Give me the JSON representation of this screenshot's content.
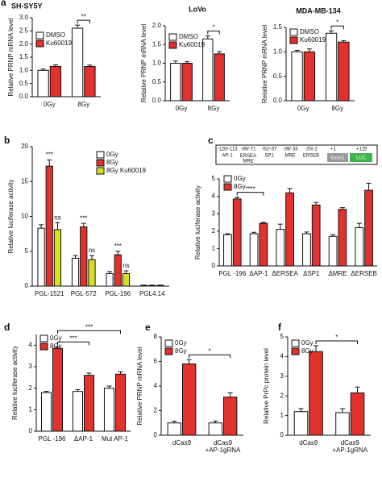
{
  "chart_data": [
    {
      "panel": "a",
      "type": "bar",
      "title": "SH-SY5Y",
      "y_label": "Relative PRNP mRNA level",
      "categories": [
        "0Gy",
        "8Gy"
      ],
      "series": [
        {
          "name": "DMSO",
          "color": "#ffffff",
          "values": [
            1.0,
            2.6
          ],
          "errors": [
            0.05,
            0.12
          ]
        },
        {
          "name": "Ku60019",
          "color": "#e3312d",
          "values": [
            1.15,
            1.15
          ],
          "errors": [
            0.06,
            0.05
          ]
        }
      ],
      "ylim": [
        0,
        3
      ],
      "yticks": [
        {
          "value": 0,
          "label": "0.0"
        },
        {
          "value": 0.5,
          "label": "0.5"
        },
        {
          "value": 1,
          "label": "1.0"
        },
        {
          "value": 1.5,
          "label": "1.5"
        },
        {
          "value": 2,
          "label": "2.0"
        },
        {
          "value": 2.5,
          "label": "2.5"
        },
        {
          "value": 3,
          "label": "3.0"
        }
      ],
      "annotations": [
        "**"
      ]
    },
    {
      "type": "bar",
      "title": "LoVo",
      "y_label": "Relative PRNP mRNA level",
      "categories": [
        "0Gy",
        "8Gy"
      ],
      "series": [
        {
          "name": "DMSO",
          "color": "#ffffff",
          "values": [
            1.0,
            1.65
          ],
          "errors": [
            0.06,
            0.08
          ]
        },
        {
          "name": "Ku60019",
          "color": "#e3312d",
          "values": [
            1.0,
            1.25
          ],
          "errors": [
            0.04,
            0.06
          ]
        }
      ],
      "ylim": [
        0,
        2
      ],
      "yticks": [
        {
          "value": 0,
          "label": "0.0"
        },
        {
          "value": 0.5,
          "label": "0.5"
        },
        {
          "value": 1,
          "label": "1.0"
        },
        {
          "value": 1.5,
          "label": "1.5"
        },
        {
          "value": 2,
          "label": "2.0"
        }
      ],
      "annotations": [
        "*"
      ]
    },
    {
      "type": "bar",
      "title": "MDA-MB-134",
      "y_label": "Relative PRNP mRNA level",
      "categories": [
        "0Gy",
        "8Gy"
      ],
      "series": [
        {
          "name": "DMSO",
          "color": "#ffffff",
          "values": [
            1.0,
            1.38
          ],
          "errors": [
            0.03,
            0.05
          ]
        },
        {
          "name": "Ku60019",
          "color": "#e3312d",
          "values": [
            1.0,
            1.2
          ],
          "errors": [
            0.06,
            0.03
          ]
        }
      ],
      "ylim": [
        0,
        1.5
      ],
      "yticks": [
        {
          "value": 0,
          "label": "0.0"
        },
        {
          "value": 0.5,
          "label": "0.5"
        },
        {
          "value": 1,
          "label": "1.0"
        },
        {
          "value": 1.5,
          "label": "1.5"
        }
      ],
      "annotations": [
        "*"
      ]
    },
    {
      "panel": "b",
      "type": "bar",
      "y_label": "Relative luciferase activity",
      "categories": [
        "PGL-1521",
        "PGL-572",
        "PGL-196",
        "PGL4.14"
      ],
      "series": [
        {
          "name": "0Gy",
          "color": "#ffffff",
          "values": [
            8.3,
            4.0,
            1.8,
            0.1
          ],
          "errors": [
            0.5,
            0.4,
            0.3,
            0.05
          ]
        },
        {
          "name": "8Gy",
          "color": "#e3312d",
          "values": [
            17.2,
            8.5,
            4.5,
            0.1
          ],
          "errors": [
            0.9,
            0.5,
            0.5,
            0.05
          ]
        },
        {
          "name": "8Gy Ku60019",
          "color": "#d6e021",
          "values": [
            8.1,
            3.8,
            1.8,
            0.1
          ],
          "errors": [
            1.0,
            0.6,
            0.4,
            0.05
          ]
        }
      ],
      "ylim": [
        0,
        20
      ],
      "yticks": [
        0,
        5,
        10,
        15,
        20
      ],
      "annotations": [
        "***",
        "ns",
        "***",
        "ns",
        "***",
        "ns"
      ]
    },
    {
      "panel": "c",
      "type": "bar",
      "y_label": "Relative luciferase activity",
      "categories": [
        "PGL -196",
        "ΔAP-1",
        "ΔERSEA",
        "ΔSP1",
        "ΔMRE",
        "ΔERSEB"
      ],
      "series": [
        {
          "name": "0Gy",
          "color": "#ffffff",
          "values": [
            1.8,
            1.85,
            2.1,
            1.85,
            1.7,
            2.2
          ],
          "errors": [
            0.05,
            0.08,
            0.3,
            0.1,
            0.1,
            0.25
          ]
        },
        {
          "name": "8Gy",
          "color": "#e3312d",
          "values": [
            3.85,
            2.45,
            4.2,
            3.5,
            3.25,
            4.35
          ],
          "errors": [
            0.1,
            0.05,
            0.25,
            0.15,
            0.1,
            0.4
          ]
        }
      ],
      "ylim": [
        0,
        5
      ],
      "yticks": [
        0,
        1,
        2,
        3,
        4,
        5
      ],
      "annotations": [
        "****"
      ],
      "diagram": {
        "sites": [
          {
            "position": "-120/-113",
            "label": "AP-1"
          },
          {
            "position": "-89/-71",
            "label": "ERSEA\nMRE"
          },
          {
            "position": "-62/-57",
            "label": "SP1"
          },
          {
            "position": "-39/-33",
            "label": "MRE"
          },
          {
            "position": "-20/-2",
            "label": "ERSEB"
          }
        ],
        "start": "+1",
        "end": "+125",
        "exon": "Exon1",
        "reporter": "LUC"
      }
    },
    {
      "panel": "d",
      "type": "bar",
      "y_label": "Relative luciferase activity",
      "categories": [
        "PGL -196",
        "ΔAP-1",
        "Mut AP-1"
      ],
      "series": [
        {
          "name": "0Gy",
          "color": "#ffffff",
          "values": [
            1.8,
            1.85,
            2.0
          ],
          "errors": [
            0.05,
            0.08,
            0.1
          ]
        },
        {
          "name": "8Gy",
          "color": "#e3312d",
          "values": [
            3.85,
            2.6,
            2.65
          ],
          "errors": [
            0.08,
            0.1,
            0.12
          ]
        }
      ],
      "ylim": [
        0,
        4.5
      ],
      "yticks": [
        0,
        1,
        2,
        3,
        4
      ],
      "annotations": [
        "***",
        "***"
      ]
    },
    {
      "panel": "e",
      "type": "bar",
      "y_label": "Relative PRNP mRNA level",
      "categories": [
        "dCas9",
        "dCas9\n+AP-1gRNA"
      ],
      "series": [
        {
          "name": "0Gy",
          "color": "#ffffff",
          "values": [
            1.0,
            1.0
          ],
          "errors": [
            0.15,
            0.15
          ]
        },
        {
          "name": "8Gy",
          "color": "#e3312d",
          "values": [
            5.8,
            3.1
          ],
          "errors": [
            0.35,
            0.35
          ]
        }
      ],
      "ylim": [
        0,
        8
      ],
      "yticks": [
        0,
        2,
        4,
        6,
        8
      ],
      "annotations": [
        "*"
      ]
    },
    {
      "panel": "f",
      "type": "bar",
      "y_label": "Relative PrPc protein level",
      "categories": [
        "dCas9",
        "dCas9\n+AP-1gRNA"
      ],
      "series": [
        {
          "name": "0Gy",
          "color": "#ffffff",
          "values": [
            1.2,
            1.15
          ],
          "errors": [
            0.15,
            0.2
          ]
        },
        {
          "name": "8Gy",
          "color": "#e3312d",
          "values": [
            4.25,
            2.15
          ],
          "errors": [
            0.3,
            0.3
          ]
        }
      ],
      "ylim": [
        0,
        5
      ],
      "yticks": [
        0,
        1,
        2,
        3,
        4,
        5
      ],
      "annotations": [
        "*"
      ]
    }
  ]
}
